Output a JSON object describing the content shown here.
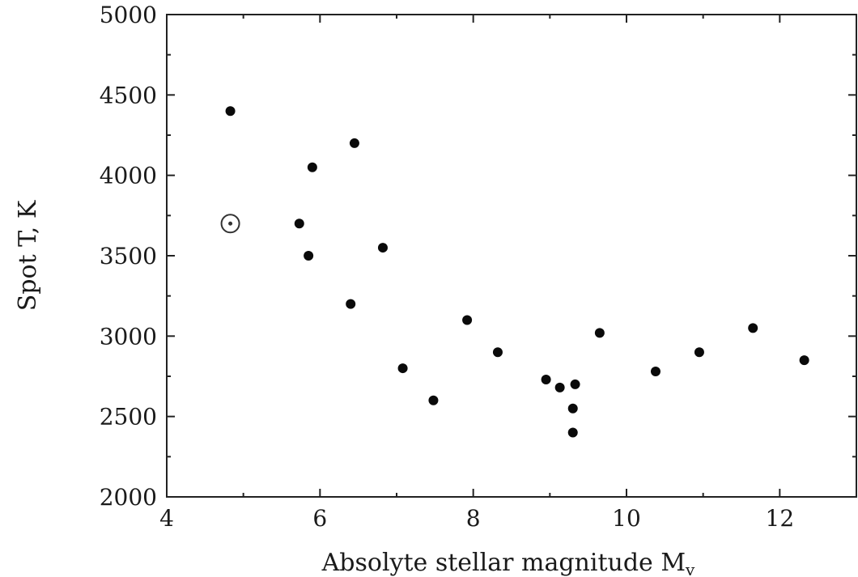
{
  "chart_data": {
    "type": "scatter",
    "xlabel": "Absolyte stellar magnitude  M",
    "xlabel_subscript": "v",
    "ylabel": "Spot T, K",
    "xlim": [
      4,
      13
    ],
    "ylim": [
      2000,
      5000
    ],
    "x_ticks": [
      4,
      6,
      8,
      10,
      12
    ],
    "y_ticks": [
      2000,
      2500,
      3000,
      3500,
      4000,
      4500,
      5000
    ],
    "grid": false,
    "series": [
      {
        "marker": "filled-circle",
        "points": [
          {
            "x": 4.83,
            "y": 4400
          },
          {
            "x": 5.73,
            "y": 3700
          },
          {
            "x": 5.85,
            "y": 3500
          },
          {
            "x": 5.9,
            "y": 4050
          },
          {
            "x": 6.4,
            "y": 3200
          },
          {
            "x": 6.45,
            "y": 4200
          },
          {
            "x": 6.82,
            "y": 3550
          },
          {
            "x": 7.08,
            "y": 2800
          },
          {
            "x": 7.48,
            "y": 2600
          },
          {
            "x": 7.92,
            "y": 3100
          },
          {
            "x": 8.32,
            "y": 2900
          },
          {
            "x": 8.95,
            "y": 2730
          },
          {
            "x": 9.13,
            "y": 2680
          },
          {
            "x": 9.3,
            "y": 2550
          },
          {
            "x": 9.3,
            "y": 2400
          },
          {
            "x": 9.33,
            "y": 2700
          },
          {
            "x": 9.65,
            "y": 3020
          },
          {
            "x": 10.38,
            "y": 2780
          },
          {
            "x": 10.95,
            "y": 2900
          },
          {
            "x": 11.65,
            "y": 3050
          },
          {
            "x": 12.32,
            "y": 2850
          }
        ]
      },
      {
        "marker": "sun-symbol",
        "points": [
          {
            "x": 4.83,
            "y": 3700
          }
        ]
      }
    ]
  }
}
